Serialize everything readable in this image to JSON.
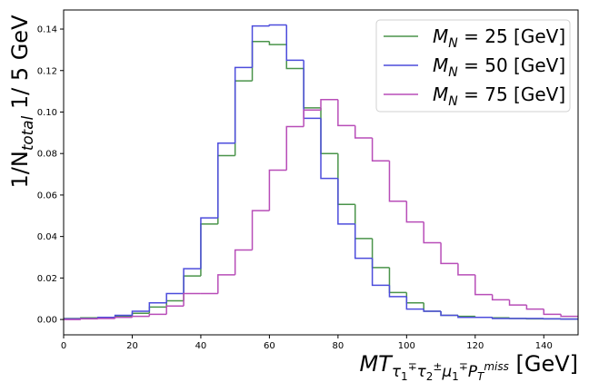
{
  "chart_data": {
    "type": "step-histogram",
    "x_label": [
      {
        "text": "MT",
        "pos": "base",
        "italic": true
      },
      {
        "text": "τ",
        "pos": "sub",
        "italic": true
      },
      {
        "text": "1",
        "pos": "sub2"
      },
      {
        "text": "∓",
        "pos": "sup2"
      },
      {
        "text": "τ",
        "pos": "sub",
        "italic": true
      },
      {
        "text": "2",
        "pos": "sub2"
      },
      {
        "text": "±",
        "pos": "sup2"
      },
      {
        "text": "μ",
        "pos": "sub",
        "italic": true
      },
      {
        "text": "1",
        "pos": "sub2"
      },
      {
        "text": "∓",
        "pos": "sup2"
      },
      {
        "text": "P",
        "pos": "sub",
        "italic": true
      },
      {
        "text": "T",
        "pos": "sub2",
        "italic": true
      },
      {
        "text": "miss",
        "pos": "sup2",
        "italic": true
      },
      {
        "text": " [GeV]",
        "pos": "base"
      }
    ],
    "y_label": [
      {
        "text": "1/N",
        "pos": "base"
      },
      {
        "text": "total",
        "pos": "sub",
        "italic": true
      },
      {
        "text": " 1/ 5 GeV",
        "pos": "base"
      }
    ],
    "bins": [
      0,
      5,
      10,
      15,
      20,
      25,
      30,
      35,
      40,
      45,
      50,
      55,
      60,
      65,
      70,
      75,
      80,
      85,
      90,
      95,
      100,
      105,
      110,
      115,
      120,
      125,
      130,
      135,
      140,
      145,
      150
    ],
    "series": [
      {
        "name": [
          {
            "text": "M",
            "pos": "base",
            "italic": true
          },
          {
            "text": "N",
            "pos": "sub",
            "italic": true
          },
          {
            "text": " = 25 [GeV]",
            "pos": "base"
          }
        ],
        "color": "#4a944a",
        "values": [
          0.0005,
          0.0008,
          0.001,
          0.0015,
          0.003,
          0.006,
          0.009,
          0.021,
          0.046,
          0.079,
          0.115,
          0.134,
          0.1325,
          0.121,
          0.102,
          0.08,
          0.0555,
          0.039,
          0.025,
          0.013,
          0.008,
          0.004,
          0.002,
          0.0015,
          0.001,
          0.0008,
          0.0005,
          0.0003,
          0.0003,
          0.0002
        ]
      },
      {
        "name": [
          {
            "text": "M",
            "pos": "base",
            "italic": true
          },
          {
            "text": "N",
            "pos": "sub",
            "italic": true
          },
          {
            "text": " = 50 [GeV]",
            "pos": "base"
          }
        ],
        "color": "#4c4cdc",
        "values": [
          0.0003,
          0.0005,
          0.001,
          0.002,
          0.004,
          0.008,
          0.0125,
          0.0245,
          0.049,
          0.085,
          0.1215,
          0.1415,
          0.142,
          0.125,
          0.097,
          0.068,
          0.046,
          0.0295,
          0.0165,
          0.011,
          0.005,
          0.004,
          0.002,
          0.001,
          0.001,
          0.0005,
          0.0005,
          0.0005,
          0.0003,
          0.0002
        ]
      },
      {
        "name": [
          {
            "text": "M",
            "pos": "base",
            "italic": true
          },
          {
            "text": "N",
            "pos": "sub",
            "italic": true
          },
          {
            "text": " = 75 [GeV]",
            "pos": "base"
          }
        ],
        "color": "#b84db8",
        "values": [
          0,
          0.0003,
          0.0005,
          0.001,
          0.0015,
          0.0025,
          0.0065,
          0.0125,
          0.0125,
          0.0215,
          0.0335,
          0.0525,
          0.072,
          0.093,
          0.101,
          0.106,
          0.0935,
          0.0875,
          0.0765,
          0.057,
          0.047,
          0.037,
          0.027,
          0.0215,
          0.012,
          0.0095,
          0.007,
          0.005,
          0.0025,
          0.0015
        ]
      }
    ],
    "xlim": [
      0,
      150
    ],
    "xticks": [
      0,
      20,
      40,
      60,
      80,
      100,
      120,
      140
    ],
    "ylim": [
      -0.0074,
      0.1492
    ],
    "yticks": [
      {
        "value": 0,
        "label": "0.00"
      },
      {
        "value": 0.02,
        "label": "0.02"
      },
      {
        "value": 0.04,
        "label": "0.04"
      },
      {
        "value": 0.06,
        "label": "0.06"
      },
      {
        "value": 0.08,
        "label": "0.08"
      },
      {
        "value": 0.1,
        "label": "0.10"
      },
      {
        "value": 0.12,
        "label": "0.12"
      },
      {
        "value": 0.14,
        "label": "0.14"
      }
    ],
    "legend": "upper right",
    "grid": false
  }
}
